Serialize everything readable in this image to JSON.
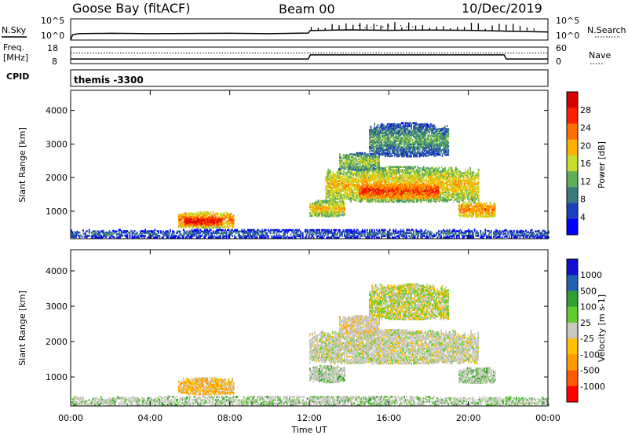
{
  "header": {
    "station": "Goose Bay (fitACF)",
    "beam": "Beam 00",
    "date": "10/Dec/2019"
  },
  "panel_nsky": {
    "left_label": "N.Sky",
    "left_ticks": [
      "10^5",
      "10^0"
    ],
    "right_label": "N.Search",
    "right_ticks": [
      "10^5",
      "10^0"
    ]
  },
  "panel_freq": {
    "left_label_1": "Freq.",
    "left_label_2": "[MHz]",
    "left_ticks": [
      "18",
      "8"
    ],
    "right_label": "Nave",
    "right_ticks": [
      "60",
      "0"
    ]
  },
  "panel_cpid": {
    "label": "CPID",
    "program": "themis -3300"
  },
  "colors": {
    "power": [
      "#0000ff",
      "#1f3fbf",
      "#3d7a80",
      "#60b05a",
      "#c8dc2c",
      "#ffb000",
      "#ff7000",
      "#ff2000",
      "#d60000"
    ],
    "velocity": [
      "#ff0000",
      "#ff5a00",
      "#ff9a00",
      "#ffc000",
      "#c8c8c0",
      "#60cc30",
      "#30a030",
      "#2060b0",
      "#1010d0"
    ],
    "velocity_ground": "#c8c8c0"
  },
  "chart_data": [
    {
      "type": "line",
      "title": "N.Sky",
      "x_unit": "hours UT",
      "xlim": [
        0,
        24
      ],
      "series": [
        {
          "name": "N.Sky",
          "x": [
            0,
            0.1,
            0.4,
            2,
            4,
            6,
            8,
            10,
            11.95,
            12.05,
            14,
            16,
            18,
            20,
            22,
            24
          ],
          "y": [
            0,
            0.25,
            0.3,
            0.32,
            0.3,
            0.31,
            0.32,
            0.3,
            0.33,
            0.45,
            0.48,
            0.46,
            0.47,
            0.46,
            0.42,
            0.38
          ]
        }
      ]
    },
    {
      "type": "line",
      "title": "Freq. [MHz] / Nave",
      "x_unit": "hours UT",
      "xlim": [
        0,
        24
      ],
      "series": [
        {
          "name": "Freq.",
          "x": [
            0,
            0.2,
            11.95,
            12.05,
            21.8,
            21.9,
            24
          ],
          "y": [
            10.8,
            10.8,
            10.8,
            13.3,
            13.3,
            10.8,
            10.8
          ]
        },
        {
          "name": "Nave",
          "x": [
            0,
            24
          ],
          "y": [
            30,
            30
          ]
        }
      ]
    },
    {
      "type": "heatmap",
      "title": "Power [dB]",
      "ylabel": "Slant Range [km]",
      "xlim": [
        0,
        24
      ],
      "ylim": [
        180,
        4600
      ],
      "y_ticks": [
        1000,
        2000,
        3000,
        4000
      ],
      "colorbar": {
        "label": "Power [dB]",
        "ticks": [
          4,
          8,
          12,
          16,
          20,
          24,
          28
        ],
        "range": [
          0,
          32
        ]
      },
      "regions": [
        {
          "t": [
            0,
            24
          ],
          "r": [
            180,
            420
          ],
          "level": 2
        },
        {
          "t": [
            5.4,
            8.2
          ],
          "r": [
            480,
            950
          ],
          "level": 6
        },
        {
          "t": [
            5.7,
            7.6
          ],
          "r": [
            550,
            800
          ],
          "level": 8
        },
        {
          "t": [
            12.0,
            13.8
          ],
          "r": [
            820,
            1300
          ],
          "level": 5
        },
        {
          "t": [
            12.8,
            20.5
          ],
          "r": [
            1250,
            2300
          ],
          "level": 5
        },
        {
          "t": [
            14.5,
            18.5
          ],
          "r": [
            1350,
            1800
          ],
          "level": 7
        },
        {
          "t": [
            13.5,
            15.5
          ],
          "r": [
            2200,
            2700
          ],
          "level": 4
        },
        {
          "t": [
            15.0,
            19.0
          ],
          "r": [
            2600,
            3600
          ],
          "level": 3
        },
        {
          "t": [
            19.5,
            21.3
          ],
          "r": [
            800,
            1250
          ],
          "level": 6
        }
      ]
    },
    {
      "type": "heatmap",
      "title": "Velocity [m s-1]",
      "ylabel": "Slant Range [km]",
      "xlabel": "Time UT",
      "xlim": [
        0,
        24
      ],
      "ylim": [
        180,
        4600
      ],
      "x_ticks": [
        "00:00",
        "04:00",
        "08:00",
        "12:00",
        "16:00",
        "20:00",
        "00:00"
      ],
      "y_ticks": [
        1000,
        2000,
        3000,
        4000
      ],
      "colorbar": {
        "label": "Velocity [m s-1]",
        "ticks": [
          "-1000",
          "-500",
          "-100",
          "-25",
          "25",
          "100",
          "500",
          "1000"
        ],
        "ground_scatter_color": "#c8c8c0"
      },
      "regions": [
        {
          "t": [
            0,
            24
          ],
          "r": [
            180,
            420
          ],
          "level": 5
        },
        {
          "t": [
            5.4,
            8.2
          ],
          "r": [
            480,
            950
          ],
          "level": 3
        },
        {
          "t": [
            12.0,
            13.8
          ],
          "r": [
            820,
            1300
          ],
          "level": 5
        },
        {
          "t": [
            12.0,
            20.5
          ],
          "r": [
            1350,
            2300
          ],
          "level": 4
        },
        {
          "t": [
            13.5,
            15.5
          ],
          "r": [
            2200,
            2700
          ],
          "level": 3
        },
        {
          "t": [
            15.0,
            19.0
          ],
          "r": [
            2600,
            3600
          ],
          "level": 4
        },
        {
          "t": [
            19.5,
            21.3
          ],
          "r": [
            800,
            1250
          ],
          "level": 5
        }
      ]
    }
  ]
}
